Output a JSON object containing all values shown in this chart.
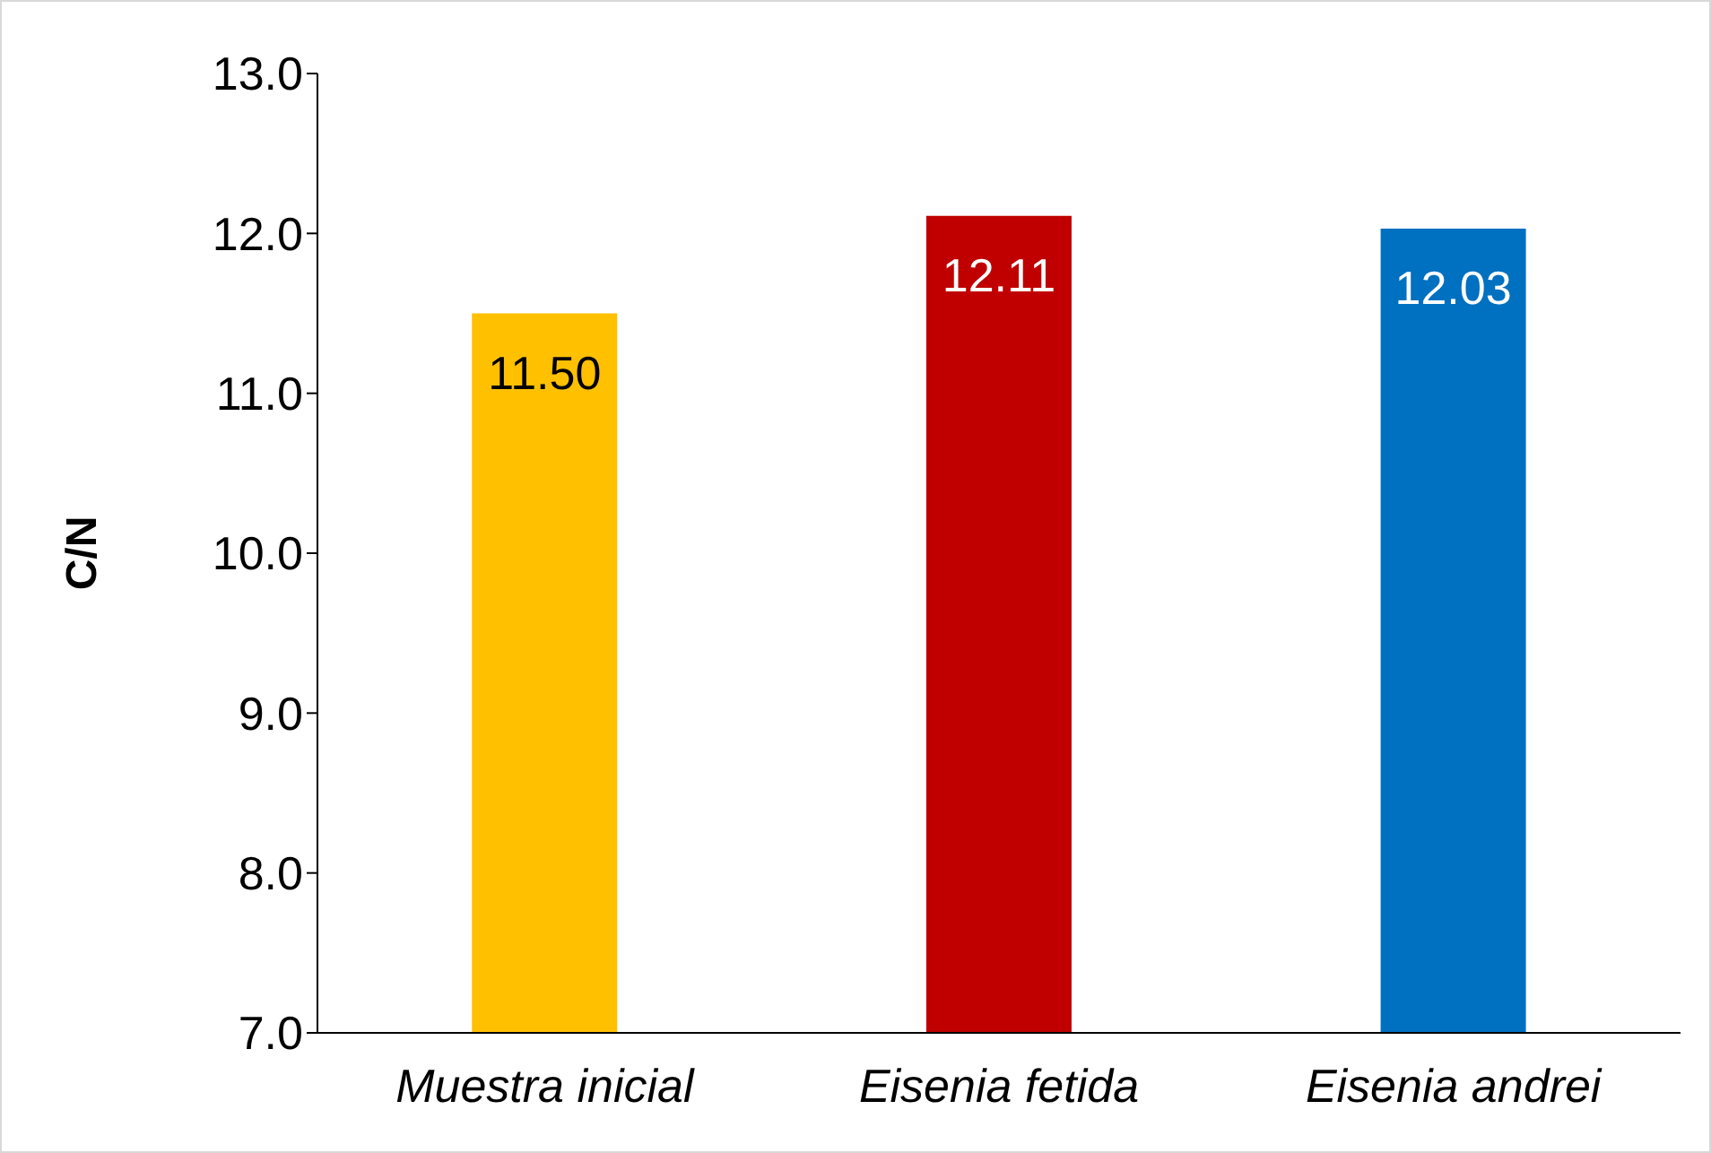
{
  "chart_data": {
    "type": "bar",
    "ylabel": "C/N",
    "categories": [
      "Muestra inicial",
      "Eisenia fetida",
      "Eisenia andrei"
    ],
    "values": [
      11.5,
      12.11,
      12.03
    ],
    "colors": [
      "#ffc000",
      "#c00000",
      "#0070c0"
    ],
    "value_labels": [
      "11.50",
      "12.11",
      "12.03"
    ],
    "ylim": [
      7,
      13
    ],
    "yticks": [
      {
        "value": 7,
        "label": "7.0"
      },
      {
        "value": 8,
        "label": "8.0"
      },
      {
        "value": 9,
        "label": "9.0"
      },
      {
        "value": 10,
        "label": "10.0"
      },
      {
        "value": 11,
        "label": "11.0"
      },
      {
        "value": 12,
        "label": "12.0"
      },
      {
        "value": 13,
        "label": "13.0"
      }
    ],
    "grid": false,
    "legend": false
  }
}
